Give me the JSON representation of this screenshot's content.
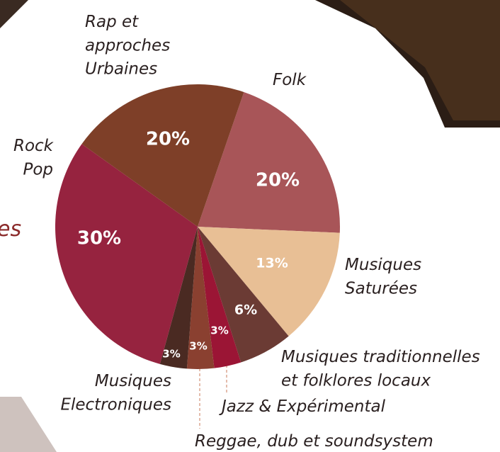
{
  "chart_data": {
    "type": "pie",
    "categories": [
      "Folk",
      "Musiques\nSaturées",
      "Musiques traditionnelles\net folklores locaux",
      "Jazz & Expérimental",
      "Reggae, dub et soundsystem",
      "Musiques\nElectroniques",
      "Rock\nPop",
      "Rap et\napproches\nUrbaines"
    ],
    "values": [
      20,
      13,
      6,
      3,
      3,
      3,
      30,
      20
    ],
    "value_labels": [
      "20%",
      "13%",
      "6%",
      "3%",
      "3%",
      "3%",
      "30%",
      "20%"
    ],
    "colors": [
      "#a85558",
      "#e8bf95",
      "#6b3b34",
      "#9b1535",
      "#8a4030",
      "#4a2a22",
      "#96233f",
      "#7e3f28"
    ]
  },
  "background_text": "es"
}
